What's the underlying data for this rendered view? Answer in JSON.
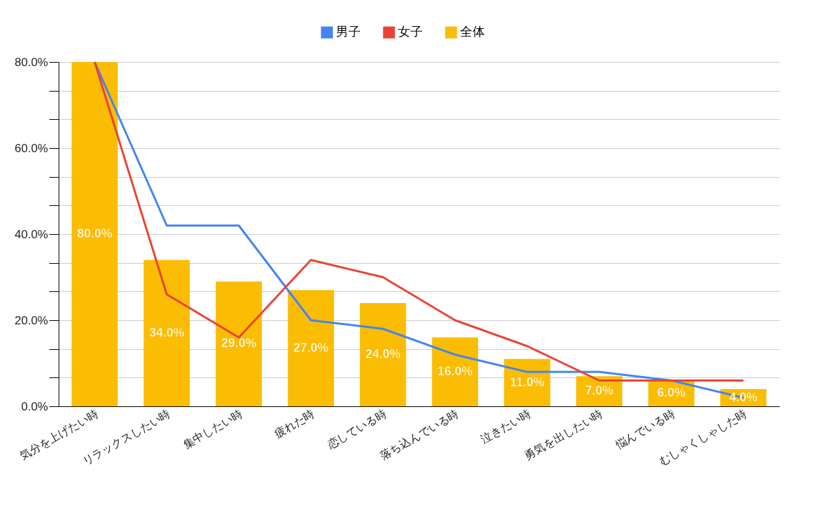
{
  "chart_data": {
    "type": "bar",
    "categories": [
      "気分を上げたい時",
      "リラックスしたい時",
      "集中したい時",
      "疲れた時",
      "恋している時",
      "落ち込んでいる時",
      "泣きたい時",
      "勇気を出したい時",
      "悩んでいる時",
      "むしゃくしゃした時"
    ],
    "series": [
      {
        "name": "男子",
        "type": "line",
        "color": "#4285f4",
        "values": [
          80,
          42,
          42,
          20,
          18,
          12,
          8,
          8,
          6,
          2
        ]
      },
      {
        "name": "女子",
        "type": "line",
        "color": "#ea4335",
        "values": [
          80,
          26,
          16,
          34,
          30,
          20,
          14,
          6,
          6,
          6
        ]
      },
      {
        "name": "全体",
        "color": "#fbbc04",
        "values": [
          80,
          34,
          29,
          27,
          24,
          16,
          11,
          7,
          6,
          4
        ],
        "value_labels": [
          "80.0%",
          "34.0%",
          "29.0%",
          "27.0%",
          "24.0%",
          "16.0%",
          "11.0%",
          "7.0%",
          "6.0%",
          "4.0%"
        ]
      }
    ],
    "ylim": [
      0,
      80
    ],
    "yticks": [
      {
        "value": 0,
        "label": "0.0%"
      },
      {
        "value": 6.667,
        "label": null
      },
      {
        "value": 13.333,
        "label": null
      },
      {
        "value": 20,
        "label": "20.0%"
      },
      {
        "value": 26.667,
        "label": null
      },
      {
        "value": 33.333,
        "label": null
      },
      {
        "value": 40,
        "label": "40.0%"
      },
      {
        "value": 46.667,
        "label": null
      },
      {
        "value": 53.333,
        "label": null
      },
      {
        "value": 60,
        "label": "60.0%"
      },
      {
        "value": 66.667,
        "label": null
      },
      {
        "value": 73.333,
        "label": null
      },
      {
        "value": 80,
        "label": "80.0%"
      }
    ],
    "grid": "y",
    "legend": "top"
  }
}
